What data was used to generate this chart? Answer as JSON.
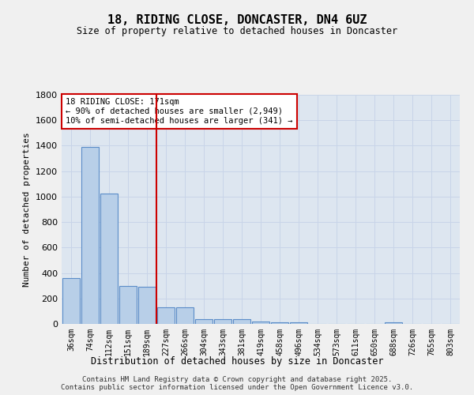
{
  "title": "18, RIDING CLOSE, DONCASTER, DN4 6UZ",
  "subtitle": "Size of property relative to detached houses in Doncaster",
  "xlabel": "Distribution of detached houses by size in Doncaster",
  "ylabel": "Number of detached properties",
  "categories": [
    "36sqm",
    "74sqm",
    "112sqm",
    "151sqm",
    "189sqm",
    "227sqm",
    "266sqm",
    "304sqm",
    "343sqm",
    "381sqm",
    "419sqm",
    "458sqm",
    "496sqm",
    "534sqm",
    "573sqm",
    "611sqm",
    "650sqm",
    "688sqm",
    "726sqm",
    "765sqm",
    "803sqm"
  ],
  "values": [
    360,
    1390,
    1025,
    295,
    290,
    130,
    130,
    40,
    35,
    35,
    20,
    15,
    10,
    0,
    0,
    0,
    0,
    15,
    0,
    0,
    0
  ],
  "bar_color": "#b8cfe8",
  "bar_edge_color": "#5b8cc8",
  "vline_x": 4.5,
  "vline_color": "#cc0000",
  "annotation_text": "18 RIDING CLOSE: 171sqm\n← 90% of detached houses are smaller (2,949)\n10% of semi-detached houses are larger (341) →",
  "annotation_box_color": "#ffffff",
  "annotation_box_edge": "#cc0000",
  "grid_color": "#c8d4e8",
  "background_color": "#dde6f0",
  "fig_background": "#f0f0f0",
  "ylim": [
    0,
    1800
  ],
  "yticks": [
    0,
    200,
    400,
    600,
    800,
    1000,
    1200,
    1400,
    1600,
    1800
  ],
  "footer_line1": "Contains HM Land Registry data © Crown copyright and database right 2025.",
  "footer_line2": "Contains public sector information licensed under the Open Government Licence v3.0."
}
